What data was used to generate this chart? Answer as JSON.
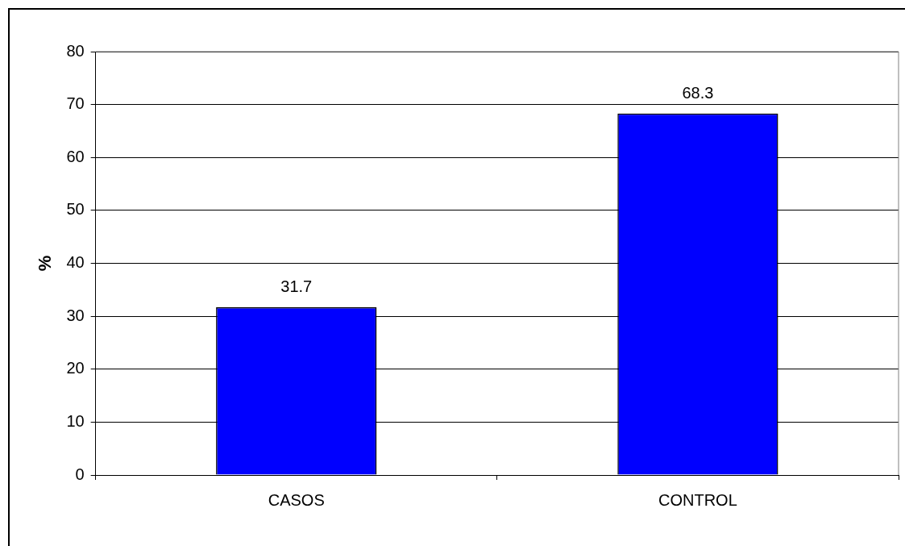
{
  "chart_data": {
    "type": "bar",
    "ylabel": "%",
    "categories": [
      "CASOS",
      "CONTROL"
    ],
    "values": [
      31.7,
      68.3
    ],
    "color": "#0000ff",
    "ylim": [
      0,
      80
    ],
    "yticks": [
      0,
      10,
      20,
      30,
      40,
      50,
      60,
      70,
      80
    ],
    "grid": "y",
    "legend": false,
    "data_labels": true
  }
}
